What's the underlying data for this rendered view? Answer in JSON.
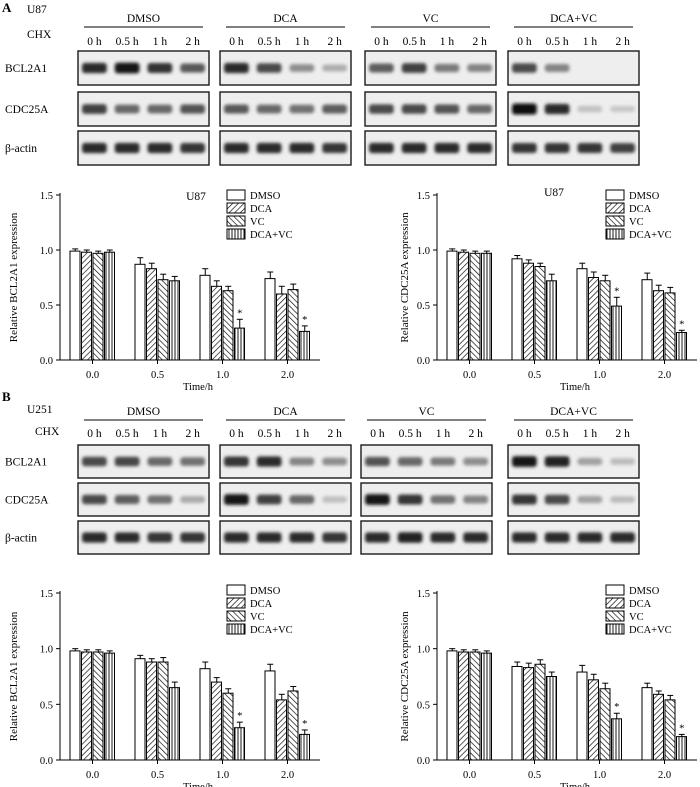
{
  "panels": [
    {
      "label": "A",
      "cell_line": "U87",
      "blots": {
        "cell_line": "U87",
        "treatment_label": "CHX",
        "groups": [
          "DMSO",
          "DCA",
          "VC",
          "DCA+VC"
        ],
        "timepoints": [
          "0 h",
          "0.5 h",
          "1 h",
          "2 h"
        ],
        "proteins": [
          "BCL2A1",
          "CDC25A",
          "β-actin"
        ],
        "intensity": [
          [
            [
              0.85,
              0.95,
              0.82,
              0.62
            ],
            [
              0.85,
              0.7,
              0.35,
              0.18
            ],
            [
              0.6,
              0.75,
              0.45,
              0.4
            ],
            [
              0.7,
              0.4,
              0.0,
              0.0
            ]
          ],
          [
            [
              0.75,
              0.55,
              0.55,
              0.65
            ],
            [
              0.62,
              0.55,
              0.5,
              0.6
            ],
            [
              0.7,
              0.7,
              0.65,
              0.55
            ],
            [
              1.0,
              0.85,
              0.08,
              0.05
            ]
          ],
          [
            [
              0.85,
              0.85,
              0.85,
              0.8
            ],
            [
              0.85,
              0.85,
              0.85,
              0.8
            ],
            [
              0.85,
              0.85,
              0.85,
              0.85
            ],
            [
              0.8,
              0.8,
              0.8,
              0.75
            ]
          ]
        ]
      },
      "charts": [
        {
          "type": "bar",
          "title": "U87",
          "xlabel": "Time/h",
          "ylabel": "Relative BCL2A1 expression",
          "ylim": [
            0,
            1.5
          ],
          "yticks": [
            "0.0",
            "0.5",
            "1.0",
            "1.5"
          ],
          "categories": [
            "0.0",
            "0.5",
            "1.0",
            "2.0"
          ],
          "legend_position": "top-right",
          "series": [
            {
              "name": "DMSO",
              "values": [
                0.99,
                0.87,
                0.77,
                0.74
              ],
              "errors": [
                0.02,
                0.06,
                0.06,
                0.06
              ]
            },
            {
              "name": "DCA",
              "values": [
                0.98,
                0.83,
                0.67,
                0.6
              ],
              "errors": [
                0.02,
                0.05,
                0.05,
                0.07
              ]
            },
            {
              "name": "VC",
              "values": [
                0.97,
                0.73,
                0.63,
                0.64
              ],
              "errors": [
                0.02,
                0.05,
                0.04,
                0.05
              ]
            },
            {
              "name": "DCA+VC",
              "values": [
                0.98,
                0.72,
                0.29,
                0.26
              ],
              "errors": [
                0.02,
                0.04,
                0.08,
                0.05
              ]
            }
          ],
          "annotations": [
            {
              "category": "1.0",
              "series": "DCA+VC",
              "text": "*"
            },
            {
              "category": "2.0",
              "series": "DCA+VC",
              "text": "*"
            }
          ]
        },
        {
          "type": "bar",
          "title": "U87",
          "xlabel": "Time/h",
          "ylabel": "Relative CDC25A expression",
          "ylim": [
            0,
            1.5
          ],
          "yticks": [
            "0.0",
            "0.5",
            "1.0",
            "1.5"
          ],
          "categories": [
            "0.0",
            "0.5",
            "1.0",
            "2.0"
          ],
          "legend_position": "top-right",
          "series": [
            {
              "name": "DMSO",
              "values": [
                0.99,
                0.92,
                0.83,
                0.73
              ],
              "errors": [
                0.02,
                0.03,
                0.05,
                0.06
              ]
            },
            {
              "name": "DCA",
              "values": [
                0.98,
                0.88,
                0.75,
                0.63
              ],
              "errors": [
                0.02,
                0.03,
                0.05,
                0.05
              ]
            },
            {
              "name": "VC",
              "values": [
                0.97,
                0.85,
                0.72,
                0.61
              ],
              "errors": [
                0.02,
                0.03,
                0.05,
                0.05
              ]
            },
            {
              "name": "DCA+VC",
              "values": [
                0.97,
                0.72,
                0.49,
                0.25
              ],
              "errors": [
                0.02,
                0.06,
                0.08,
                0.02
              ]
            }
          ],
          "annotations": [
            {
              "category": "1.0",
              "series": "DCA+VC",
              "text": "*"
            },
            {
              "category": "2.0",
              "series": "DCA+VC",
              "text": "*"
            }
          ]
        }
      ]
    },
    {
      "label": "B",
      "cell_line": "U251",
      "blots": {
        "cell_line": "U251",
        "treatment_label": "CHX",
        "groups": [
          "DMSO",
          "DCA",
          "VC",
          "DCA+VC"
        ],
        "timepoints": [
          "0 h",
          "0.5 h",
          "1 h",
          "2 h"
        ],
        "proteins": [
          "BCL2A1",
          "CDC25A",
          "β-actin"
        ],
        "intensity": [
          [
            [
              0.7,
              0.72,
              0.55,
              0.5
            ],
            [
              0.8,
              0.85,
              0.4,
              0.35
            ],
            [
              0.65,
              0.55,
              0.45,
              0.35
            ],
            [
              0.95,
              0.9,
              0.25,
              0.12
            ]
          ],
          [
            [
              0.7,
              0.6,
              0.5,
              0.2
            ],
            [
              0.95,
              0.75,
              0.55,
              0.1
            ],
            [
              0.95,
              0.8,
              0.5,
              0.4
            ],
            [
              0.8,
              0.7,
              0.25,
              0.12
            ]
          ],
          [
            [
              0.85,
              0.85,
              0.8,
              0.8
            ],
            [
              0.85,
              0.85,
              0.85,
              0.8
            ],
            [
              0.85,
              0.9,
              0.85,
              0.85
            ],
            [
              0.85,
              0.85,
              0.85,
              0.85
            ]
          ]
        ]
      },
      "charts": [
        {
          "type": "bar",
          "title": "",
          "xlabel": "Time/h",
          "ylabel": "Relative BCL2A1 expression",
          "ylim": [
            0,
            1.5
          ],
          "yticks": [
            "0.0",
            "0.5",
            "1.0",
            "1.5"
          ],
          "categories": [
            "0.0",
            "0.5",
            "1.0",
            "2.0"
          ],
          "legend_position": "top-right",
          "series": [
            {
              "name": "DMSO",
              "values": [
                0.98,
                0.91,
                0.82,
                0.8
              ],
              "errors": [
                0.02,
                0.03,
                0.06,
                0.06
              ]
            },
            {
              "name": "DCA",
              "values": [
                0.97,
                0.88,
                0.7,
                0.54
              ],
              "errors": [
                0.02,
                0.03,
                0.04,
                0.05
              ]
            },
            {
              "name": "VC",
              "values": [
                0.97,
                0.88,
                0.6,
                0.62
              ],
              "errors": [
                0.02,
                0.04,
                0.04,
                0.04
              ]
            },
            {
              "name": "DCA+VC",
              "values": [
                0.96,
                0.65,
                0.29,
                0.23
              ],
              "errors": [
                0.02,
                0.05,
                0.05,
                0.04
              ]
            }
          ],
          "annotations": [
            {
              "category": "1.0",
              "series": "DCA+VC",
              "text": "*"
            },
            {
              "category": "2.0",
              "series": "DCA+VC",
              "text": "*"
            }
          ]
        },
        {
          "type": "bar",
          "title": "",
          "xlabel": "Time/h",
          "ylabel": "Relative CDC25A expression",
          "ylim": [
            0,
            1.5
          ],
          "yticks": [
            "0.0",
            "0.5",
            "1.0",
            "1.5"
          ],
          "categories": [
            "0.0",
            "0.5",
            "1.0",
            "2.0"
          ],
          "legend_position": "top-right",
          "series": [
            {
              "name": "DMSO",
              "values": [
                0.98,
                0.84,
                0.79,
                0.65
              ],
              "errors": [
                0.02,
                0.04,
                0.06,
                0.04
              ]
            },
            {
              "name": "DCA",
              "values": [
                0.97,
                0.83,
                0.72,
                0.59
              ],
              "errors": [
                0.02,
                0.04,
                0.05,
                0.03
              ]
            },
            {
              "name": "VC",
              "values": [
                0.97,
                0.86,
                0.64,
                0.54
              ],
              "errors": [
                0.02,
                0.04,
                0.05,
                0.04
              ]
            },
            {
              "name": "DCA+VC",
              "values": [
                0.96,
                0.75,
                0.37,
                0.21
              ],
              "errors": [
                0.02,
                0.04,
                0.05,
                0.02
              ]
            }
          ],
          "annotations": [
            {
              "category": "1.0",
              "series": "DCA+VC",
              "text": "*"
            },
            {
              "category": "2.0",
              "series": "DCA+VC",
              "text": "*"
            }
          ]
        }
      ]
    }
  ]
}
